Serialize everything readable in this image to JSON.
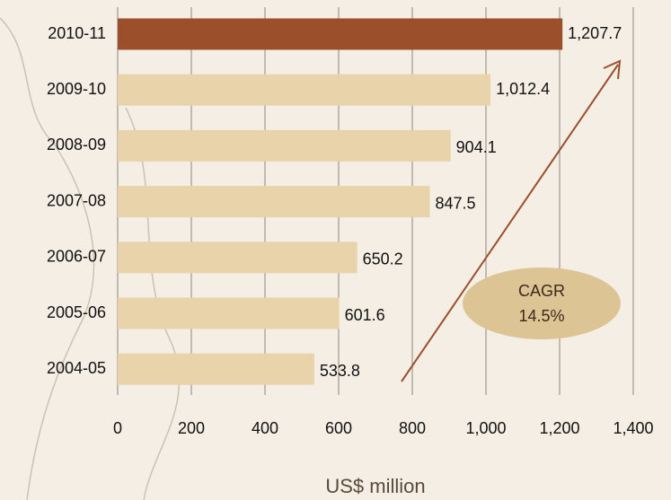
{
  "chart_data": {
    "type": "bar",
    "orientation": "horizontal",
    "categories": [
      "2010-11",
      "2009-10",
      "2008-09",
      "2007-08",
      "2006-07",
      "2005-06",
      "2004-05"
    ],
    "values": [
      1207.7,
      1012.4,
      904.1,
      847.5,
      650.2,
      601.6,
      533.8
    ],
    "value_labels": [
      "1,207.7",
      "1,012.4",
      "904.1",
      "847.5",
      "650.2",
      "601.6",
      "533.8"
    ],
    "colors": [
      "#9b4f2b",
      "#e8d3ab",
      "#e8d3ab",
      "#e8d3ab",
      "#e8d3ab",
      "#e8d3ab",
      "#e8d3ab"
    ],
    "xlabel": "US$ million",
    "xlim": [
      0,
      1400
    ],
    "xticks": [
      0,
      200,
      400,
      600,
      800,
      {
        "value": 1000,
        "label": "1,000"
      },
      {
        "value": 1200,
        "label": "1,200"
      },
      {
        "value": 1400,
        "label": "1,400"
      }
    ],
    "grid": true,
    "annotation": {
      "lines": [
        "CAGR",
        "14.5%"
      ]
    }
  }
}
